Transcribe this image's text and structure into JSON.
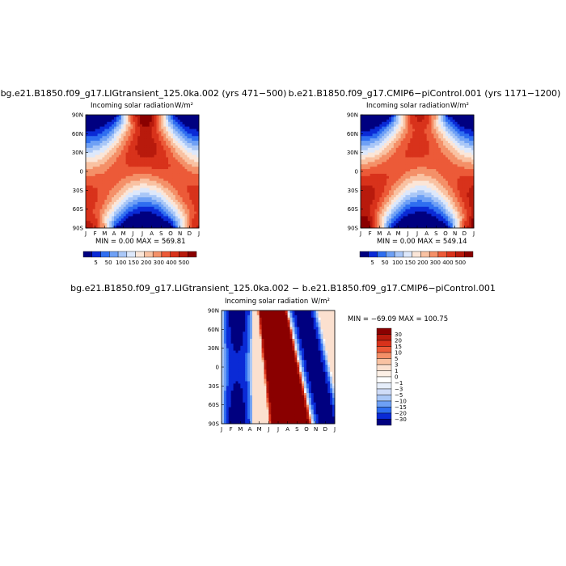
{
  "chart_data": [
    {
      "type": "heatmap",
      "title": "bg.e21.B1850.f09_g17.LIGtransient_125.0ka.002 (yrs 471−500)",
      "subtitle": "Incoming solar radiation",
      "units": "W/m²",
      "x_ticks": [
        "J",
        "F",
        "M",
        "A",
        "M",
        "J",
        "J",
        "A",
        "S",
        "O",
        "N",
        "D",
        "J"
      ],
      "y_ticks": [
        "90N",
        "60N",
        "30N",
        "0",
        "30S",
        "60S",
        "90S"
      ],
      "ylim": [
        -90,
        90
      ],
      "stats": "MIN =    0.00 MAX = 569.81",
      "min": 0.0,
      "max": 569.81,
      "field": "insolation",
      "perihelion_month": 7.0,
      "colorbar": {
        "orientation": "horizontal",
        "levels": [
          "5",
          "50",
          "100",
          "150",
          "200",
          "300",
          "400",
          "500"
        ],
        "colors": [
          "#000080",
          "#0a2ad6",
          "#2f6ef0",
          "#6ea0f5",
          "#a9c7f7",
          "#dde8fb",
          "#fbe6d8",
          "#f9c2a2",
          "#f49068",
          "#ec5a38",
          "#d8321b",
          "#b81a0c",
          "#8a0000"
        ]
      }
    },
    {
      "type": "heatmap",
      "title": "b.e21.B1850.f09_g17.CMIP6−piControl.001 (yrs 1171−1200)",
      "subtitle": "Incoming solar radiation",
      "units": "W/m²",
      "x_ticks": [
        "J",
        "F",
        "M",
        "A",
        "M",
        "J",
        "J",
        "A",
        "S",
        "O",
        "N",
        "D",
        "J"
      ],
      "y_ticks": [
        "90N",
        "60N",
        "30N",
        "0",
        "30S",
        "60S",
        "90S"
      ],
      "ylim": [
        -90,
        90
      ],
      "stats": "MIN =    0.00 MAX = 549.14",
      "min": 0.0,
      "max": 549.14,
      "field": "insolation",
      "perihelion_month": 1.0,
      "colorbar": {
        "orientation": "horizontal",
        "levels": [
          "5",
          "50",
          "100",
          "150",
          "200",
          "300",
          "400",
          "500"
        ],
        "colors": [
          "#000080",
          "#0a2ad6",
          "#2f6ef0",
          "#6ea0f5",
          "#a9c7f7",
          "#dde8fb",
          "#fbe6d8",
          "#f9c2a2",
          "#f49068",
          "#ec5a38",
          "#d8321b",
          "#b81a0c",
          "#8a0000"
        ]
      }
    },
    {
      "type": "heatmap",
      "title": "bg.e21.B1850.f09_g17.LIGtransient_125.0ka.002 − b.e21.B1850.f09_g17.CMIP6−piControl.001",
      "subtitle": "Incoming solar radiation",
      "units": "W/m²",
      "x_ticks": [
        "J",
        "F",
        "M",
        "A",
        "M",
        "J",
        "J",
        "A",
        "S",
        "O",
        "N",
        "D",
        "J"
      ],
      "y_ticks": [
        "90N",
        "60N",
        "30N",
        "0",
        "30S",
        "60S",
        "90S"
      ],
      "ylim": [
        -90,
        90
      ],
      "stats": "MIN = −69.09 MAX = 100.75",
      "min": -69.09,
      "max": 100.75,
      "field": "difference",
      "colorbar": {
        "orientation": "vertical",
        "levels": [
          "30",
          "20",
          "15",
          "10",
          "5",
          "3",
          "1",
          "0",
          "−1",
          "−3",
          "−5",
          "−10",
          "−15",
          "−20",
          "−30"
        ],
        "colors": [
          "#8a0000",
          "#b81a0c",
          "#d8321b",
          "#ec5a38",
          "#f49068",
          "#f9c2a2",
          "#fbe0cf",
          "#fdf0e6",
          "#ffffff",
          "#e6eefb",
          "#cfdcf8",
          "#a9c7f7",
          "#6ea0f5",
          "#2f6ef0",
          "#0a2ad6",
          "#000080"
        ]
      }
    }
  ]
}
